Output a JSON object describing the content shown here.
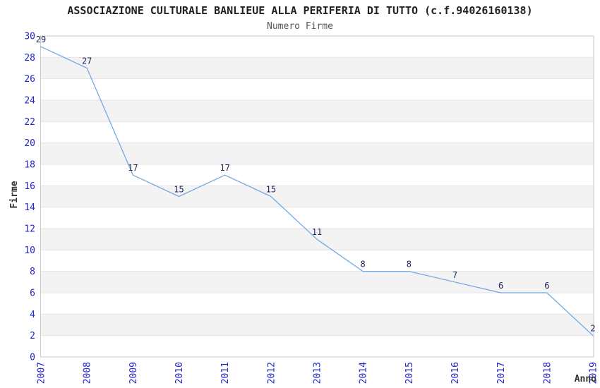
{
  "page": {
    "background": "#ffffff"
  },
  "chart_data": {
    "type": "line",
    "title": "ASSOCIAZIONE CULTURALE BANLIEUE ALLA PERIFERIA DI TUTTO (c.f.94026160138)",
    "subtitle": "Numero Firme",
    "xlabel": "Anno",
    "ylabel": "Firme",
    "categories": [
      "2007",
      "2008",
      "2009",
      "2010",
      "2011",
      "2012",
      "2013",
      "2014",
      "2015",
      "2016",
      "2017",
      "2018",
      "2019"
    ],
    "values": [
      29,
      27,
      17,
      15,
      17,
      15,
      11,
      8,
      8,
      7,
      6,
      6,
      2
    ],
    "ylim": [
      0,
      30
    ],
    "ytick_step": 2,
    "grid": "horizontal-gridlines-with-alternating-bands",
    "legend_position": "none",
    "data_labels_visible": true,
    "colors": {
      "line": "#74A9E2",
      "tick_label": "#2424CC",
      "data_label": "#23255C",
      "band": "#F3F3F3",
      "grid_line": "#E4E4E4",
      "border": "#C9C9C9",
      "title": "#222222",
      "subtitle": "#565656",
      "axis_title": "#333333"
    }
  }
}
